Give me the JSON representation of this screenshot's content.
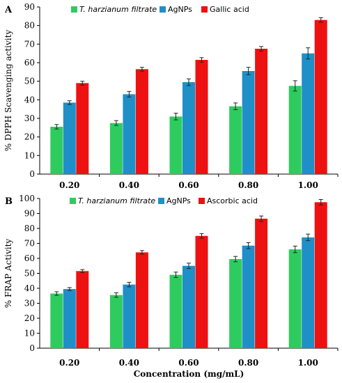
{
  "chart_data": [
    {
      "type": "bar",
      "panel_label": "A",
      "categories": [
        "0.20",
        "0.40",
        "0.60",
        "0.80",
        "1.00"
      ],
      "ylabel": "% DPPH Scavenging activity",
      "xlabel": "",
      "ylim": [
        0,
        90
      ],
      "ytick_step": 10,
      "legend_position": "top",
      "series": [
        {
          "name": "T. harzianum filtrate",
          "italic": true,
          "color": "#2ecc5f",
          "values": [
            25.5,
            27.5,
            31,
            36.5,
            47.5
          ],
          "errors": [
            1.2,
            1.3,
            1.8,
            1.8,
            2.8
          ]
        },
        {
          "name": "AgNPs",
          "italic": false,
          "color": "#1f8fc8",
          "values": [
            38.5,
            43,
            49.5,
            55.5,
            65
          ],
          "errors": [
            1.0,
            1.5,
            1.8,
            2.0,
            3.0
          ]
        },
        {
          "name": "Gallic acid",
          "italic": false,
          "color": "#ee1111",
          "values": [
            49,
            56.5,
            61.5,
            67.5,
            83
          ],
          "errors": [
            1.0,
            1.0,
            1.2,
            1.2,
            1.2
          ]
        }
      ]
    },
    {
      "type": "bar",
      "panel_label": "B",
      "categories": [
        "0.20",
        "0.40",
        "0.60",
        "0.80",
        "1.00"
      ],
      "ylabel": "% FRAP Activity",
      "xlabel": "Concentration (mg/mL)",
      "ylim": [
        0,
        100
      ],
      "ytick_step": 10,
      "legend_position": "top",
      "series": [
        {
          "name": "T. harzianum filtrate",
          "italic": true,
          "color": "#2ecc5f",
          "values": [
            36.5,
            35.5,
            49,
            59.5,
            66
          ],
          "errors": [
            1.2,
            1.5,
            1.8,
            1.8,
            2.2
          ]
        },
        {
          "name": "AgNPs",
          "italic": false,
          "color": "#1f8fc8",
          "values": [
            39.5,
            42.5,
            55,
            68.5,
            74
          ],
          "errors": [
            1.0,
            1.5,
            1.8,
            2.0,
            2.2
          ]
        },
        {
          "name": "Ascorbic acid",
          "italic": false,
          "color": "#ee1111",
          "values": [
            51.5,
            64,
            75,
            86.5,
            97.5
          ],
          "errors": [
            1.0,
            1.2,
            1.5,
            1.8,
            1.8
          ]
        }
      ]
    }
  ]
}
